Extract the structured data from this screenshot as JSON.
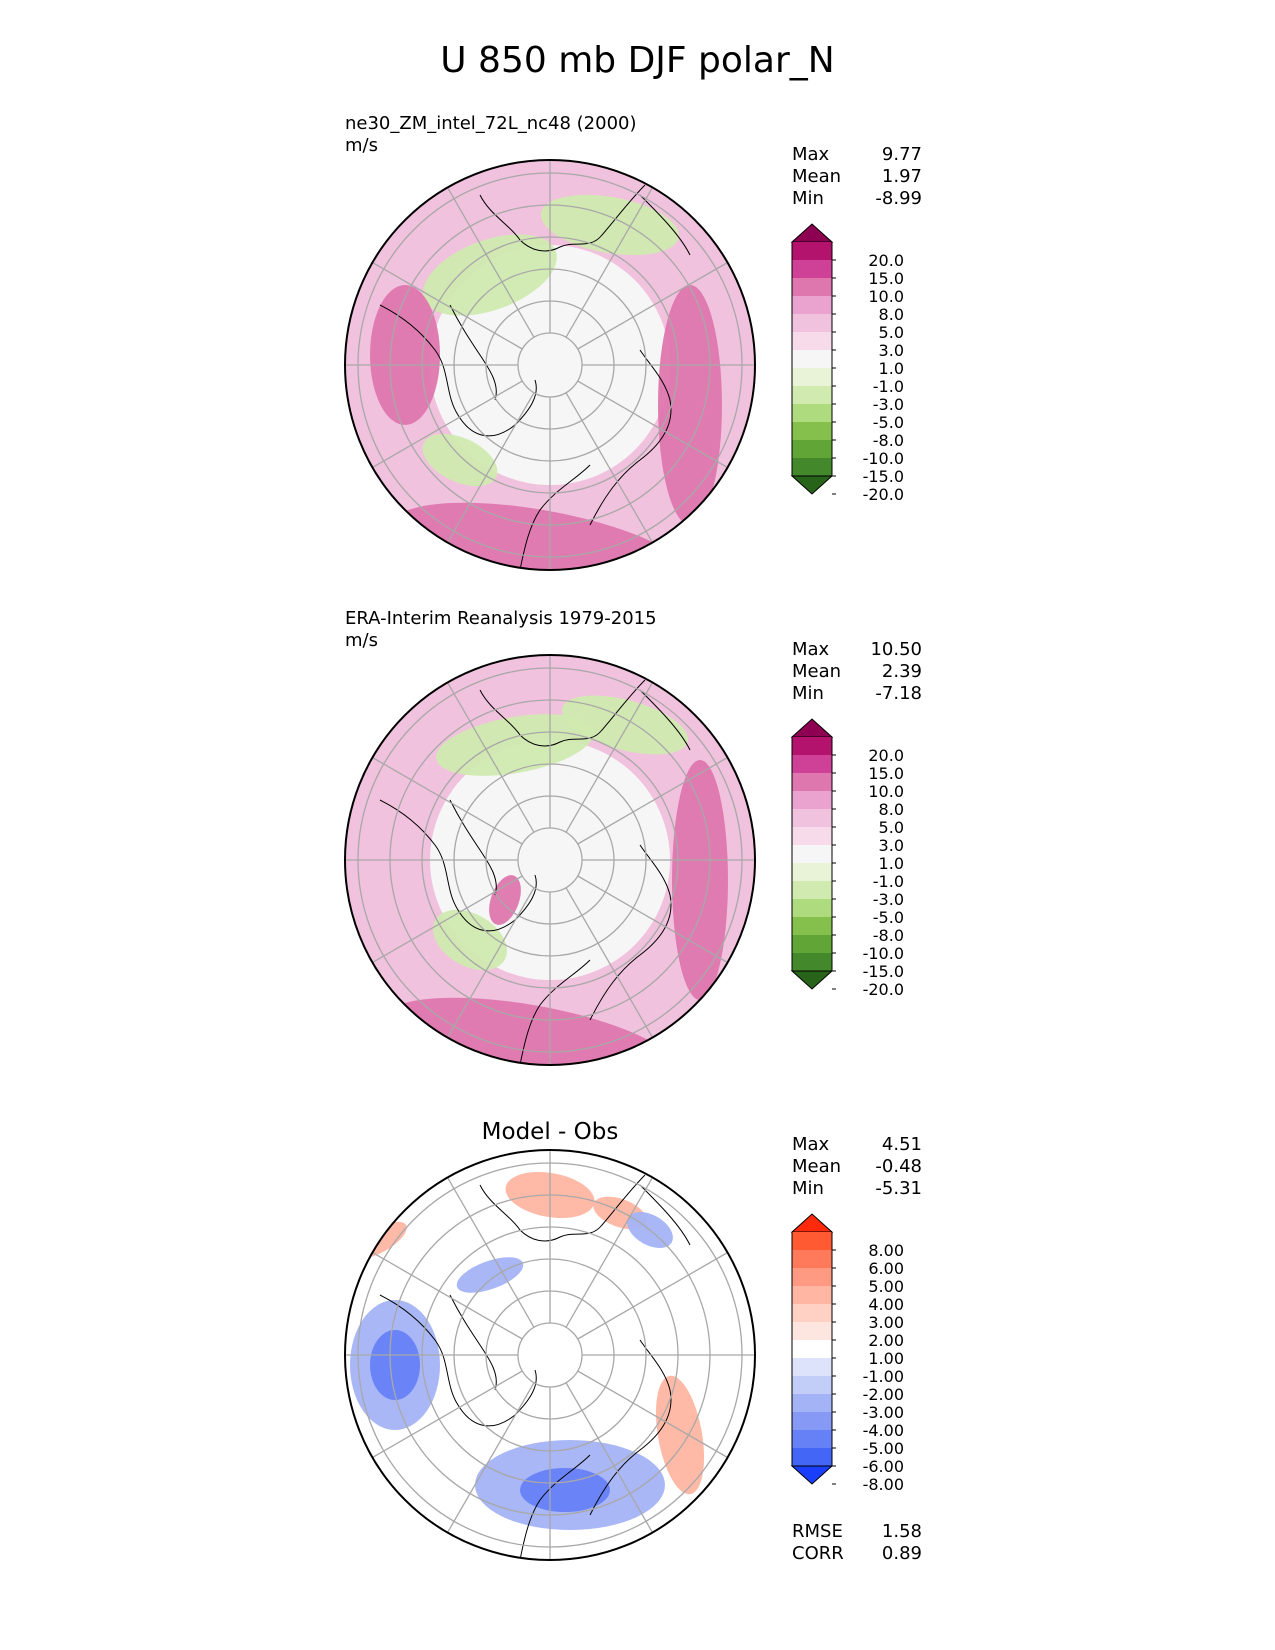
{
  "title": "U 850 mb DJF polar_N",
  "chart_data": [
    {
      "type": "heatmap",
      "projection": "north-polar-stereographic",
      "title": "ne30_ZM_intel_72L_nc48 (2000)",
      "units": "m/s",
      "stats": [
        {
          "label": "Max",
          "value": "9.77"
        },
        {
          "label": "Mean",
          "value": "1.97"
        },
        {
          "label": "Min",
          "value": "-8.99"
        }
      ],
      "colorbar": {
        "levels": [
          "20.0",
          "15.0",
          "10.0",
          "8.0",
          "5.0",
          "3.0",
          "1.0",
          "-1.0",
          "-3.0",
          "-5.0",
          "-8.0",
          "-10.0",
          "-15.0",
          "-20.0"
        ],
        "colors": [
          "#8e0152",
          "#b3136c",
          "#ce4196",
          "#de77ae",
          "#e9a3ce",
          "#f1c2dd",
          "#f7dbea",
          "#f6f6f6",
          "#e9f3d8",
          "#d0eab0",
          "#aedb7e",
          "#86c04c",
          "#62a537",
          "#43892c",
          "#276419"
        ],
        "extend": "both"
      },
      "field_colors": {
        "background": "#f1c2dd",
        "polar": "#f6f6f6",
        "positive_strong": "#de77ae",
        "negative": "#d0eab0"
      }
    },
    {
      "type": "heatmap",
      "projection": "north-polar-stereographic",
      "title": "ERA-Interim Reanalysis 1979-2015",
      "units": "m/s",
      "stats": [
        {
          "label": "Max",
          "value": "10.50"
        },
        {
          "label": "Mean",
          "value": "2.39"
        },
        {
          "label": "Min",
          "value": "-7.18"
        }
      ],
      "colorbar": {
        "levels": [
          "20.0",
          "15.0",
          "10.0",
          "8.0",
          "5.0",
          "3.0",
          "1.0",
          "-1.0",
          "-3.0",
          "-5.0",
          "-8.0",
          "-10.0",
          "-15.0",
          "-20.0"
        ],
        "colors": [
          "#8e0152",
          "#b3136c",
          "#ce4196",
          "#de77ae",
          "#e9a3ce",
          "#f1c2dd",
          "#f7dbea",
          "#f6f6f6",
          "#e9f3d8",
          "#d0eab0",
          "#aedb7e",
          "#86c04c",
          "#62a537",
          "#43892c",
          "#276419"
        ],
        "extend": "both"
      },
      "field_colors": {
        "background": "#f1c2dd",
        "polar": "#f6f6f6",
        "positive_strong": "#de77ae",
        "negative": "#d0eab0"
      }
    },
    {
      "type": "heatmap",
      "projection": "north-polar-stereographic",
      "title": "Model - Obs",
      "units": "",
      "stats": [
        {
          "label": "Max",
          "value": "4.51"
        },
        {
          "label": "Mean",
          "value": "-0.48"
        },
        {
          "label": "Min",
          "value": "-5.31"
        }
      ],
      "colorbar": {
        "levels": [
          "8.00",
          "6.00",
          "5.00",
          "4.00",
          "3.00",
          "2.00",
          "1.00",
          "-1.00",
          "-2.00",
          "-3.00",
          "-4.00",
          "-5.00",
          "-6.00",
          "-8.00"
        ],
        "colors": [
          "#ff2a0c",
          "#ff5a32",
          "#ff7a5a",
          "#ff9a82",
          "#ffb6a2",
          "#ffd0c4",
          "#fde6df",
          "#ffffff",
          "#dde3fb",
          "#c2cdf8",
          "#a4b3f6",
          "#8599f5",
          "#6680f5",
          "#4466f7",
          "#1a3ffb"
        ],
        "extend": "both"
      },
      "field_colors": {
        "background": "#ffffff",
        "positive": "#ffb6a2",
        "negative": "#a4b3f6",
        "negative_strong": "#6680f5"
      },
      "metrics": [
        {
          "label": "RMSE",
          "value": "1.58"
        },
        {
          "label": "CORR",
          "value": "0.89"
        }
      ]
    }
  ]
}
